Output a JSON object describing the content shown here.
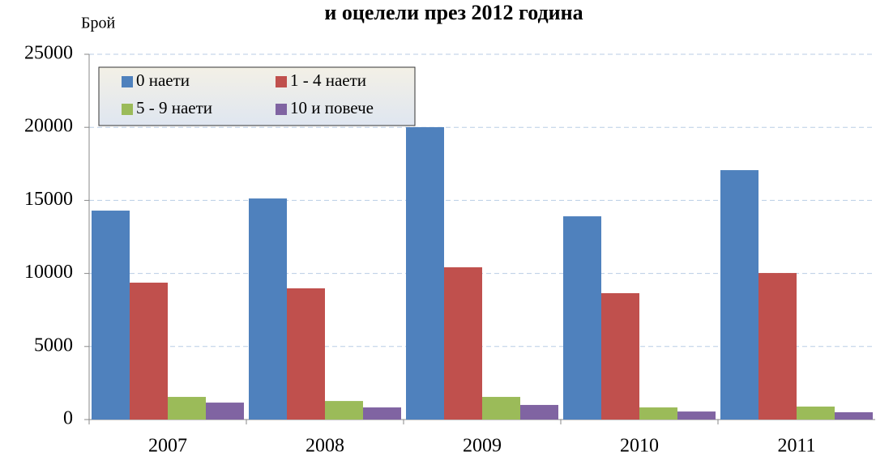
{
  "chart_data": {
    "type": "bar",
    "title": "и оцелели през 2012 година",
    "y_label": "Брой",
    "categories": [
      "2007",
      "2008",
      "2009",
      "2010",
      "2011"
    ],
    "series": [
      {
        "name": "0 наети",
        "color": "#4f81bd",
        "values": [
          14300,
          15130,
          20010,
          13910,
          17070
        ]
      },
      {
        "name": "1 - 4 наети",
        "color": "#c0504d",
        "values": [
          9370,
          8980,
          10420,
          8650,
          10030
        ]
      },
      {
        "name": "5 - 9 наети",
        "color": "#9bbb59",
        "values": [
          1550,
          1270,
          1550,
          830,
          890
        ]
      },
      {
        "name": "10 и повече",
        "color": "#8064a2",
        "values": [
          1160,
          830,
          1000,
          550,
          500
        ]
      }
    ],
    "ylim": [
      0,
      25000
    ],
    "yticks": [
      0,
      5000,
      10000,
      15000,
      20000,
      25000
    ],
    "grid": true,
    "legend": "top-left"
  }
}
